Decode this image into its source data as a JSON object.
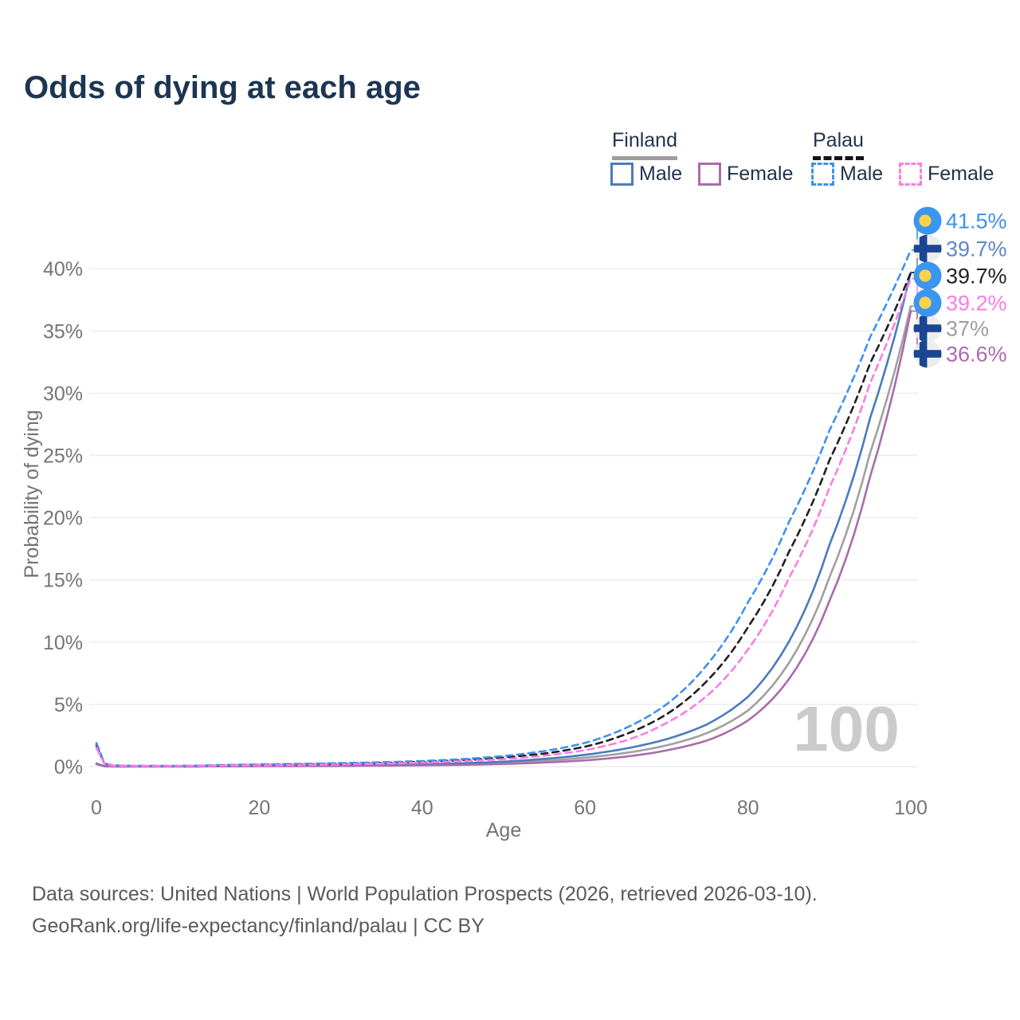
{
  "title": "Odds of dying at each age",
  "legend": {
    "groups": [
      {
        "name": "Finland",
        "line_style": "solid",
        "underline_color": "#9e9e9e",
        "items": [
          {
            "label": "Male",
            "color": "#4a7bbd",
            "dashed": false
          },
          {
            "label": "Female",
            "color": "#a96cac",
            "dashed": false
          }
        ]
      },
      {
        "name": "Palau",
        "line_style": "dashed",
        "underline_color": "#151515",
        "items": [
          {
            "label": "Male",
            "color": "#3f90ee",
            "dashed": true
          },
          {
            "label": "Female",
            "color": "#fb7de4",
            "dashed": true
          }
        ]
      }
    ]
  },
  "chart_data": {
    "type": "line",
    "title": "Odds of dying at each age",
    "xlabel": "Age",
    "ylabel": "Probability of dying",
    "xlim": [
      0,
      100
    ],
    "ylim": [
      0,
      43
    ],
    "grid": "horizontal",
    "watermark": "100",
    "x_ticks": [
      {
        "value": 0,
        "label": "0"
      },
      {
        "value": 20,
        "label": "20"
      },
      {
        "value": 40,
        "label": "40"
      },
      {
        "value": 60,
        "label": "60"
      },
      {
        "value": 80,
        "label": "80"
      },
      {
        "value": 100,
        "label": "100"
      }
    ],
    "y_ticks": [
      {
        "value": 0,
        "label": "0%"
      },
      {
        "value": 5,
        "label": "5%"
      },
      {
        "value": 10,
        "label": "10%"
      },
      {
        "value": 15,
        "label": "15%"
      },
      {
        "value": 20,
        "label": "20%"
      },
      {
        "value": 25,
        "label": "25%"
      },
      {
        "value": 30,
        "label": "30%"
      },
      {
        "value": 35,
        "label": "35%"
      },
      {
        "value": 40,
        "label": "40%"
      }
    ],
    "ages": [
      0,
      1,
      2,
      5,
      10,
      15,
      20,
      25,
      30,
      35,
      40,
      45,
      50,
      55,
      60,
      65,
      70,
      75,
      80,
      85,
      90,
      95,
      100
    ],
    "series": [
      {
        "key": "finland_overall",
        "name": "Finland",
        "color": "#a0a0a0",
        "dashed": false,
        "values": [
          0.22,
          0.03,
          0.015,
          0.01,
          0.01,
          0.025,
          0.045,
          0.06,
          0.075,
          0.1,
          0.14,
          0.2,
          0.3,
          0.47,
          0.72,
          1.1,
          1.7,
          2.7,
          4.5,
          8.3,
          15.2,
          25.2,
          37.0
        ],
        "end_label": "37%",
        "end_label_color": "#9e9e9e",
        "label_slot": 4,
        "flag": "finland"
      },
      {
        "key": "finland_male",
        "name": "Finland Male",
        "color": "#4a7bbd",
        "dashed": false,
        "values": [
          0.25,
          0.03,
          0.02,
          0.01,
          0.01,
          0.03,
          0.06,
          0.08,
          0.1,
          0.13,
          0.18,
          0.27,
          0.4,
          0.62,
          0.95,
          1.45,
          2.2,
          3.4,
          5.6,
          10.0,
          17.8,
          28.0,
          39.7
        ],
        "end_label": "39.7%",
        "end_label_color": "#5d87c9",
        "label_slot": 1,
        "flag": "finland"
      },
      {
        "key": "finland_female",
        "name": "Finland Female",
        "color": "#a96cac",
        "dashed": false,
        "values": [
          0.2,
          0.02,
          0.01,
          0.01,
          0.01,
          0.02,
          0.03,
          0.04,
          0.05,
          0.07,
          0.1,
          0.14,
          0.21,
          0.33,
          0.5,
          0.8,
          1.3,
          2.1,
          3.7,
          7.0,
          13.3,
          23.3,
          36.6
        ],
        "end_label": "36.6%",
        "end_label_color": "#a96cac",
        "label_slot": 5,
        "flag": "finland"
      },
      {
        "key": "palau_overall",
        "name": "Palau",
        "color": "#202020",
        "dashed": true,
        "values": [
          1.7,
          0.22,
          0.09,
          0.05,
          0.05,
          0.1,
          0.14,
          0.18,
          0.23,
          0.3,
          0.38,
          0.52,
          0.73,
          1.05,
          1.6,
          2.6,
          4.2,
          6.9,
          11.2,
          17.2,
          24.6,
          32.4,
          39.7
        ],
        "end_label": "39.7%",
        "end_label_color": "#222222",
        "label_slot": 2,
        "flag": "palau"
      },
      {
        "key": "palau_male",
        "name": "Palau Male",
        "color": "#3f90ee",
        "dashed": true,
        "values": [
          1.9,
          0.25,
          0.1,
          0.06,
          0.06,
          0.12,
          0.18,
          0.22,
          0.28,
          0.35,
          0.45,
          0.6,
          0.85,
          1.25,
          1.9,
          3.1,
          5.0,
          8.2,
          13.2,
          19.6,
          27.0,
          34.5,
          41.5
        ],
        "end_label": "41.5%",
        "end_label_color": "#3f90ee",
        "label_slot": 0,
        "flag": "palau"
      },
      {
        "key": "palau_female",
        "name": "Palau Female",
        "color": "#fb7de4",
        "dashed": true,
        "values": [
          1.5,
          0.2,
          0.08,
          0.05,
          0.05,
          0.08,
          0.1,
          0.13,
          0.18,
          0.24,
          0.32,
          0.44,
          0.6,
          0.88,
          1.32,
          2.1,
          3.5,
          5.7,
          9.4,
          15.1,
          22.4,
          30.8,
          39.2
        ],
        "end_label": "39.2%",
        "end_label_color": "#fb7de4",
        "label_slot": 3,
        "flag": "palau"
      }
    ]
  },
  "flags": {
    "palau": {
      "circle_fill": "#3a96ef",
      "disc_fill": "#fdd24b"
    },
    "finland": {
      "circle_fill": "#ededed",
      "cross_fill": "#1a4694"
    }
  },
  "footer": {
    "line1": "Data sources: United Nations | World Population Prospects (2026, retrieved 2026-03-10).",
    "line2": "GeoRank.org/life-expectancy/finland/palau | CC BY"
  }
}
